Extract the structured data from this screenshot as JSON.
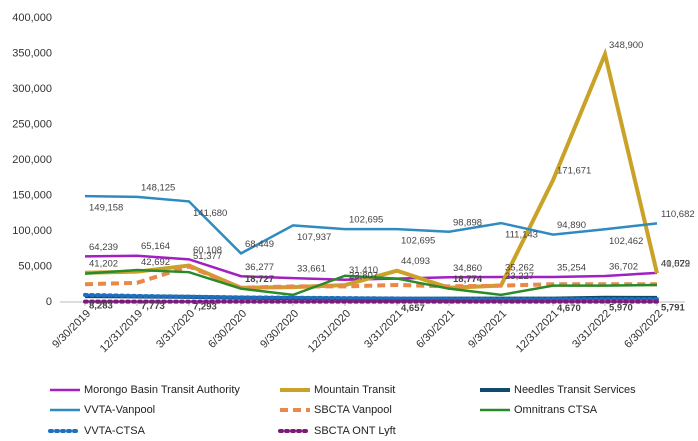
{
  "chart_data": {
    "type": "line",
    "categories": [
      "9/30/2019",
      "12/31/2019",
      "3/31/2020",
      "6/30/2020",
      "9/30/2020",
      "12/31/2020",
      "3/31/2021",
      "6/30/2021",
      "9/30/2021",
      "12/31/2021",
      "3/31/2022",
      "6/30/2022"
    ],
    "ylim": [
      0,
      400000
    ],
    "yticks": [
      {
        "value": 0,
        "label": "0"
      },
      {
        "value": 50000,
        "label": "50,000"
      },
      {
        "value": 100000,
        "label": "100,000"
      },
      {
        "value": 150000,
        "label": "150,000"
      },
      {
        "value": 200000,
        "label": "200,000"
      },
      {
        "value": 250000,
        "label": "250,000"
      },
      {
        "value": 300000,
        "label": "300,000"
      },
      {
        "value": 350000,
        "label": "350,000"
      },
      {
        "value": 400000,
        "label": "400,000"
      }
    ],
    "grid": false,
    "series": [
      {
        "name": "Morongo Basin Transit Authority",
        "color": "#a21fc0",
        "width": 2.5,
        "dash": "solid",
        "values": [
          64239,
          65164,
          60108,
          36277,
          33661,
          31410,
          33000,
          34860,
          35262,
          35254,
          36702,
          41022
        ],
        "value_labels": [
          "64,239",
          "65,164",
          "60,108",
          "36,277",
          "33,661",
          "31,410",
          null,
          "34,860",
          "35,262",
          "35,254",
          "36,702",
          "41,022"
        ]
      },
      {
        "name": "Mountain Transit",
        "color": "#c9a227",
        "width": 4,
        "dash": "solid",
        "values": [
          41202,
          42692,
          51377,
          20000,
          21000,
          23807,
          44093,
          20000,
          23227,
          171671,
          348900,
          40579
        ],
        "value_labels": [
          "41,202",
          "42,692",
          "51,377",
          null,
          null,
          "23,807",
          "44,093",
          null,
          "23,227",
          "171,671",
          "348,900",
          "40,579"
        ]
      },
      {
        "name": "Needles Transit Services",
        "color": "#0d4a6b",
        "width": 4,
        "dash": "solid",
        "values": [
          8283,
          7773,
          7293,
          6000,
          5500,
          5000,
          4657,
          4700,
          4800,
          4670,
          5970,
          5791
        ],
        "value_labels": [
          "8,283",
          "7,773",
          "7,293",
          null,
          null,
          null,
          "4,657",
          null,
          null,
          "4,670",
          "5,970",
          "5,791"
        ]
      },
      {
        "name": "VVTA-Vanpool",
        "color": "#2f8bbf",
        "width": 2.5,
        "dash": "solid",
        "values": [
          149158,
          148125,
          141680,
          68449,
          107937,
          102695,
          102695,
          98898,
          111143,
          94890,
          102462,
          110682
        ],
        "value_labels": [
          "149,158",
          "148,125",
          "141,680",
          "68,449",
          "107,937",
          "102,695",
          "102,695",
          "98,898",
          "111,143",
          "94,890",
          "102,462",
          "110,682"
        ]
      },
      {
        "name": "SBCTA Vanpool",
        "color": "#e8894a",
        "width": 4,
        "dash": "dashed",
        "values": [
          25000,
          27000,
          50000,
          20000,
          22000,
          22000,
          24000,
          22000,
          23000,
          25000,
          25000,
          25000
        ]
      },
      {
        "name": "Omnitrans CTSA",
        "color": "#2a8a2a",
        "width": 2.5,
        "dash": "solid",
        "values": [
          40000,
          45000,
          42000,
          18727,
          10000,
          37000,
          33000,
          18774,
          10000,
          23000,
          23000,
          24000
        ],
        "value_labels": [
          null,
          null,
          null,
          "18,727",
          null,
          null,
          null,
          "18,774",
          null,
          null,
          null,
          null
        ]
      },
      {
        "name": "VVTA-CTSA",
        "color": "#1f6fc0",
        "width": 4,
        "dash": "dotted",
        "values": [
          10000,
          8500,
          7500,
          6500,
          6000,
          5500,
          5000,
          4500,
          4000,
          4000,
          4000,
          4000
        ]
      },
      {
        "name": "SBCTA ONT Lyft",
        "color": "#7a1a7a",
        "width": 4,
        "dash": "dotted",
        "values": [
          500,
          500,
          500,
          500,
          500,
          500,
          500,
          500,
          500,
          500,
          500,
          500
        ]
      }
    ]
  }
}
